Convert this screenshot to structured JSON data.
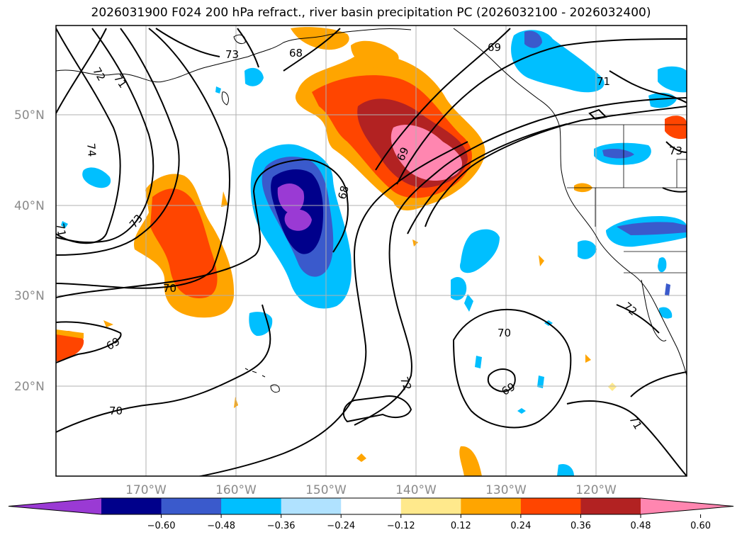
{
  "title": "2026031900 F024 200 hPa refract., river basin precipitation PC (2026032100 - 2026032400)",
  "latitude_labels": [
    "50°N",
    "40°N",
    "30°N",
    "20°N"
  ],
  "longitude_labels": [
    "170°W",
    "160°W",
    "150°W",
    "140°W",
    "130°W",
    "120°W"
  ],
  "colorbar": {
    "tick_labels": [
      "−0.60",
      "−0.48",
      "−0.36",
      "−0.24",
      "−0.12",
      "0.12",
      "0.24",
      "0.36",
      "0.48",
      "0.60"
    ],
    "colors": [
      "#9a3ad4",
      "#00008b",
      "#3a5acc",
      "#00bfff",
      "#b0e2ff",
      "#ffffff",
      "#ffe98c",
      "#ffa500",
      "#ff4500",
      "#b22222",
      "#ff86b0"
    ]
  },
  "contour_labels": [
    "72",
    "71",
    "74",
    "73",
    "71",
    "70",
    "69",
    "68",
    "68",
    "69",
    "69",
    "71",
    "73",
    "70",
    "72",
    "69",
    "70",
    "71",
    "72",
    "73"
  ]
}
